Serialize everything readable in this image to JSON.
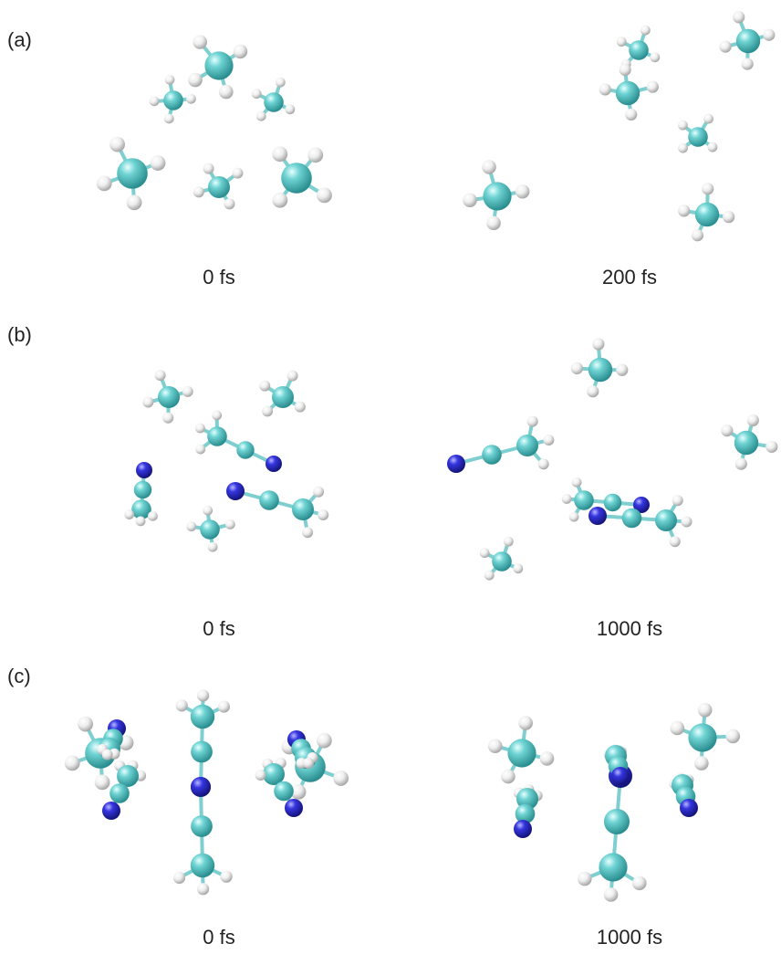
{
  "panels": [
    {
      "label": "(a)",
      "frames": [
        {
          "time": "0 fs"
        },
        {
          "time": "200 fs"
        }
      ]
    },
    {
      "label": "(b)",
      "frames": [
        {
          "time": "0 fs"
        },
        {
          "time": "1000 fs"
        }
      ]
    },
    {
      "label": "(c)",
      "frames": [
        {
          "time": "0 fs"
        },
        {
          "time": "1000 fs"
        }
      ]
    }
  ]
}
